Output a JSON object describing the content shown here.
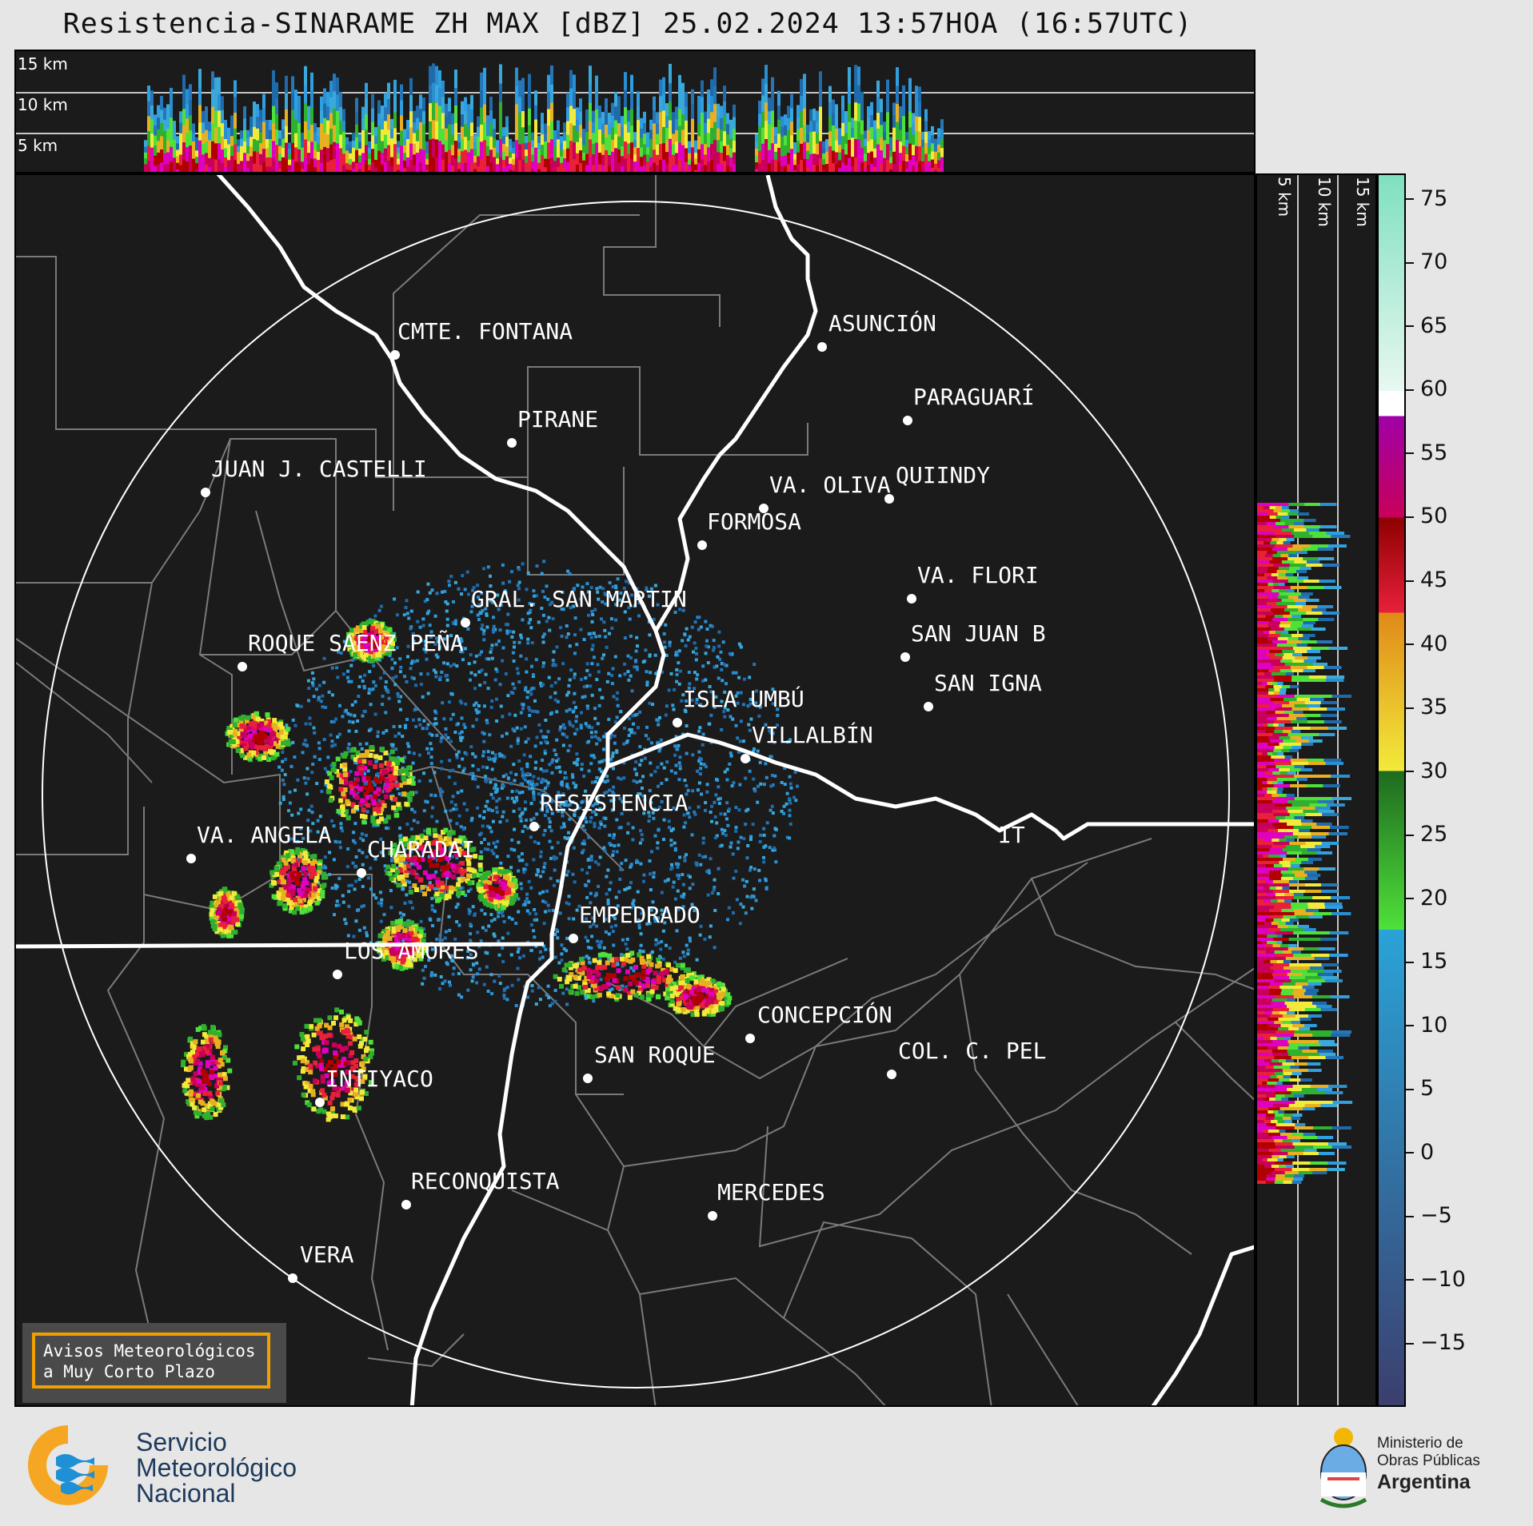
{
  "title": "Resistencia-SINARAME ZH MAX [dBZ] 25.02.2024 13:57HOA (16:57UTC)",
  "height_labels": [
    "15 km",
    "10 km",
    "5 km"
  ],
  "side_labels": [
    "5 km",
    "10 km",
    "15 km"
  ],
  "places": [
    {
      "name": "CMTE. FONTANA"
    },
    {
      "name": "ASUNCIÓN"
    },
    {
      "name": "PARAGUARÍ"
    },
    {
      "name": "PIRANE"
    },
    {
      "name": "JUAN J. CASTELLI"
    },
    {
      "name": "VA. OLIVA"
    },
    {
      "name": "QUIINDY"
    },
    {
      "name": "FORMOSA"
    },
    {
      "name": "VA. FLORI"
    },
    {
      "name": "GRAL. SAN MARTIN"
    },
    {
      "name": "SAN JUAN B"
    },
    {
      "name": "ROQUE SAENZ PEÑA"
    },
    {
      "name": "SAN IGNA"
    },
    {
      "name": "ISLA UMBÚ"
    },
    {
      "name": "VILLALBÍN"
    },
    {
      "name": "RESISTENCIA"
    },
    {
      "name": "VA. ANGELA"
    },
    {
      "name": "CHARADAI"
    },
    {
      "name": "IT"
    },
    {
      "name": "EMPEDRADO"
    },
    {
      "name": "LOS AMORES"
    },
    {
      "name": "CONCEPCIÓN"
    },
    {
      "name": "SAN ROQUE"
    },
    {
      "name": "COL. C. PEL"
    },
    {
      "name": "INTIYACO"
    },
    {
      "name": "RECONQUISTA"
    },
    {
      "name": "MERCEDES"
    },
    {
      "name": "VERA"
    }
  ],
  "colorbar": {
    "unit": "dBZ",
    "ticks": [
      "75",
      "70",
      "65",
      "60",
      "55",
      "50",
      "45",
      "40",
      "35",
      "30",
      "25",
      "20",
      "15",
      "10",
      "5",
      "0",
      "−5",
      "−10",
      "−15"
    ],
    "stops": [
      {
        "from": -20,
        "to": 17.5,
        "start": "#3b3f6e",
        "end": "#2aa3d8"
      },
      {
        "from": 17.5,
        "to": 30,
        "start": "#4fe03a",
        "end": "#1f6a1f"
      },
      {
        "from": 30,
        "to": 42.5,
        "start": "#f2ea3a",
        "end": "#e08a18"
      },
      {
        "from": 42.5,
        "to": 50,
        "start": "#e8203a",
        "end": "#8e0000"
      },
      {
        "from": 50,
        "to": 58,
        "start": "#c8005a",
        "end": "#a000a8"
      },
      {
        "from": 58,
        "to": 60,
        "start": "#ffffff",
        "end": "#ffffff"
      },
      {
        "from": 60,
        "to": 77,
        "start": "#e8f8f0",
        "end": "#7fe0c0"
      }
    ]
  },
  "aviso": {
    "line1": "Avisos Meteorológicos",
    "line2": "a Muy Corto Plazo"
  },
  "smn": {
    "line1": "Servicio",
    "line2": "Meteorológico",
    "line3": "Nacional"
  },
  "ministry": {
    "line1": "Ministerio de",
    "line2": "Obras Públicas",
    "line3": "Argentina"
  },
  "colors": {
    "background": "#1b1b1b",
    "border_lines": "#7a7a7a",
    "rivers": "#ffffff",
    "range_ring": "#ffffff"
  }
}
